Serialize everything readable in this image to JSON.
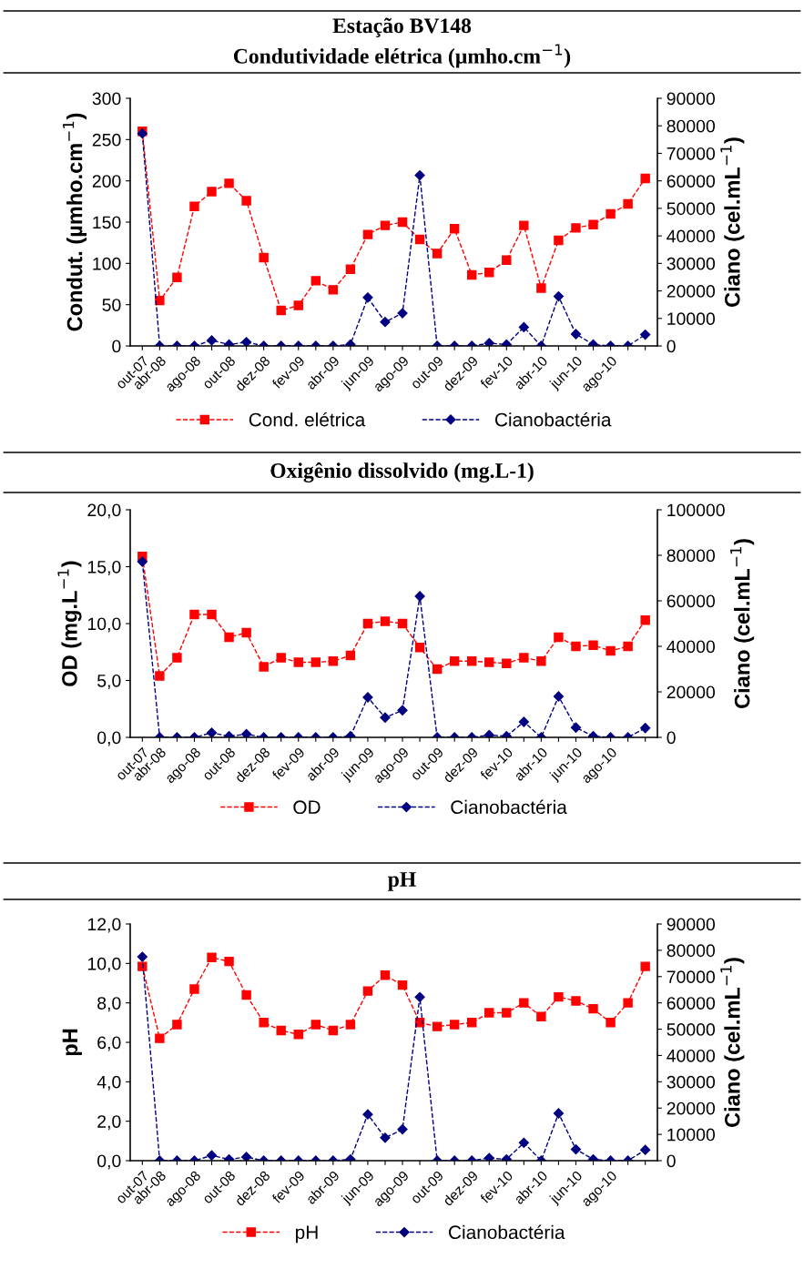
{
  "chart_data": [
    {
      "type": "line",
      "title": "Estação BV148",
      "subtitle": "Condutividade elétrica (µmho.cm$^{−1}$)",
      "ylabel": "Condut. (µmho.cm$^{−1}$)",
      "y2label": "Ciano (cel.mL$^{−1}$)",
      "categories": [
        "out-07",
        "abr-08",
        null,
        "ago-08",
        null,
        "out-08",
        null,
        "dez-08",
        null,
        "fev-09",
        null,
        "abr-09",
        null,
        "jun-09",
        null,
        "ago-09",
        null,
        "out-09",
        null,
        "dez-09",
        null,
        "fev-10",
        null,
        "abr-10",
        null,
        "jun-10",
        null,
        "ago-10",
        null,
        null
      ],
      "series": [
        {
          "name": "Cond. elétrica",
          "color": "#ff0000",
          "marker": "square",
          "line_style": "dashed",
          "values": [
            260,
            55,
            83,
            169,
            187,
            197,
            176,
            107,
            43,
            49,
            79,
            68,
            93,
            135,
            146,
            150,
            129,
            112,
            142,
            86,
            89,
            104,
            146,
            70,
            128,
            143,
            147,
            160,
            172,
            203
          ]
        },
        {
          "name": "Cianobactéria",
          "color": "#000080",
          "marker": "diamond",
          "line_style": "dashed",
          "axis": "y2",
          "values": [
            77200,
            0,
            0,
            0,
            2000,
            500,
            1400,
            0,
            0,
            0,
            0,
            0,
            500,
            17600,
            8700,
            11900,
            62000,
            0,
            0,
            0,
            1000,
            500,
            6800,
            0,
            18000,
            4300,
            500,
            0,
            0,
            4100
          ]
        }
      ],
      "ylim": [
        0,
        300
      ],
      "yticks": [
        0,
        50,
        100,
        150,
        200,
        250,
        300
      ],
      "y2lim": [
        0,
        90000
      ],
      "y2ticks": [
        0,
        10000,
        20000,
        30000,
        40000,
        50000,
        60000,
        70000,
        80000,
        90000
      ],
      "grid": false,
      "legend": "bottom"
    },
    {
      "type": "line",
      "title": "Oxigênio dissolvido (mg.L-1)",
      "ylabel": "OD (mg.L$^{−1}$)",
      "y2label": "Ciano (cel.mL$^{−1}$)",
      "categories": [
        "out-07",
        "abr-08",
        null,
        "ago-08",
        null,
        "out-08",
        null,
        "dez-08",
        null,
        "fev-09",
        null,
        "abr-09",
        null,
        "jun-09",
        null,
        "ago-09",
        null,
        "out-09",
        null,
        "dez-09",
        null,
        "fev-10",
        null,
        "abr-10",
        null,
        "jun-10",
        null,
        "ago-10",
        null,
        null
      ],
      "series": [
        {
          "name": "OD",
          "color": "#ff0000",
          "marker": "square",
          "line_style": "dashed",
          "values": [
            15.9,
            5.4,
            7.0,
            10.8,
            10.8,
            8.8,
            9.2,
            6.2,
            7.0,
            6.6,
            6.6,
            6.7,
            7.2,
            10.0,
            10.2,
            10.0,
            7.9,
            6.0,
            6.7,
            6.7,
            6.6,
            6.5,
            7.0,
            6.7,
            8.8,
            8.0,
            8.1,
            7.6,
            8.0,
            10.3
          ]
        },
        {
          "name": "Cianobactéria",
          "color": "#000080",
          "marker": "diamond",
          "line_style": "dashed",
          "axis": "y2",
          "values": [
            77200,
            0,
            0,
            0,
            2000,
            500,
            1400,
            0,
            0,
            0,
            0,
            0,
            500,
            17600,
            8700,
            11900,
            62000,
            0,
            0,
            0,
            1000,
            500,
            6800,
            0,
            18000,
            4300,
            500,
            0,
            0,
            4100
          ]
        }
      ],
      "ylim": [
        0,
        20
      ],
      "yticks": [
        {
          "value": 0,
          "label": "0,0"
        },
        {
          "value": 5,
          "label": "5,0"
        },
        {
          "value": 10,
          "label": "10,0"
        },
        {
          "value": 15,
          "label": "15,0"
        },
        {
          "value": 20,
          "label": "20,0"
        }
      ],
      "y2lim": [
        0,
        100000
      ],
      "y2ticks": [
        0,
        20000,
        40000,
        60000,
        80000,
        100000
      ],
      "grid": false,
      "legend": "bottom"
    },
    {
      "type": "line",
      "title": "pH",
      "ylabel": "pH",
      "y2label": "Ciano (cel.mL$^{−1}$)",
      "categories": [
        "out-07",
        "abr-08",
        null,
        "ago-08",
        null,
        "out-08",
        null,
        "dez-08",
        null,
        "fev-09",
        null,
        "abr-09",
        null,
        "jun-09",
        null,
        "ago-09",
        null,
        "out-09",
        null,
        "dez-09",
        null,
        "fev-10",
        null,
        "abr-10",
        null,
        "jun-10",
        null,
        "ago-10",
        null,
        null
      ],
      "series": [
        {
          "name": "pH",
          "color": "#ff0000",
          "marker": "square",
          "line_style": "dashed",
          "values": [
            9.85,
            6.2,
            6.9,
            8.7,
            10.3,
            10.1,
            8.4,
            7.0,
            6.6,
            6.4,
            6.9,
            6.6,
            6.9,
            8.6,
            9.4,
            8.9,
            7.0,
            6.8,
            6.9,
            7.0,
            7.5,
            7.5,
            8.0,
            7.3,
            8.3,
            8.1,
            7.7,
            7.0,
            8.0,
            9.85
          ]
        },
        {
          "name": "Cianobactéria",
          "color": "#000080",
          "marker": "diamond",
          "line_style": "dashed",
          "axis": "y2",
          "values": [
            77500,
            0,
            0,
            0,
            2000,
            500,
            1400,
            0,
            0,
            0,
            0,
            0,
            500,
            17600,
            8700,
            11900,
            62200,
            0,
            0,
            0,
            1000,
            500,
            6800,
            0,
            18000,
            4300,
            500,
            0,
            0,
            4100
          ]
        }
      ],
      "ylim": [
        0,
        12
      ],
      "yticks": [
        {
          "value": 0,
          "label": "0,0"
        },
        {
          "value": 2,
          "label": "2,0"
        },
        {
          "value": 4,
          "label": "4,0"
        },
        {
          "value": 6,
          "label": "6,0"
        },
        {
          "value": 8,
          "label": "8,0"
        },
        {
          "value": 10,
          "label": "10,0"
        },
        {
          "value": 12,
          "label": "12,0"
        }
      ],
      "y2lim": [
        0,
        90000
      ],
      "y2ticks": [
        0,
        10000,
        20000,
        30000,
        40000,
        50000,
        60000,
        70000,
        80000,
        90000
      ],
      "grid": false,
      "legend": "bottom"
    }
  ]
}
